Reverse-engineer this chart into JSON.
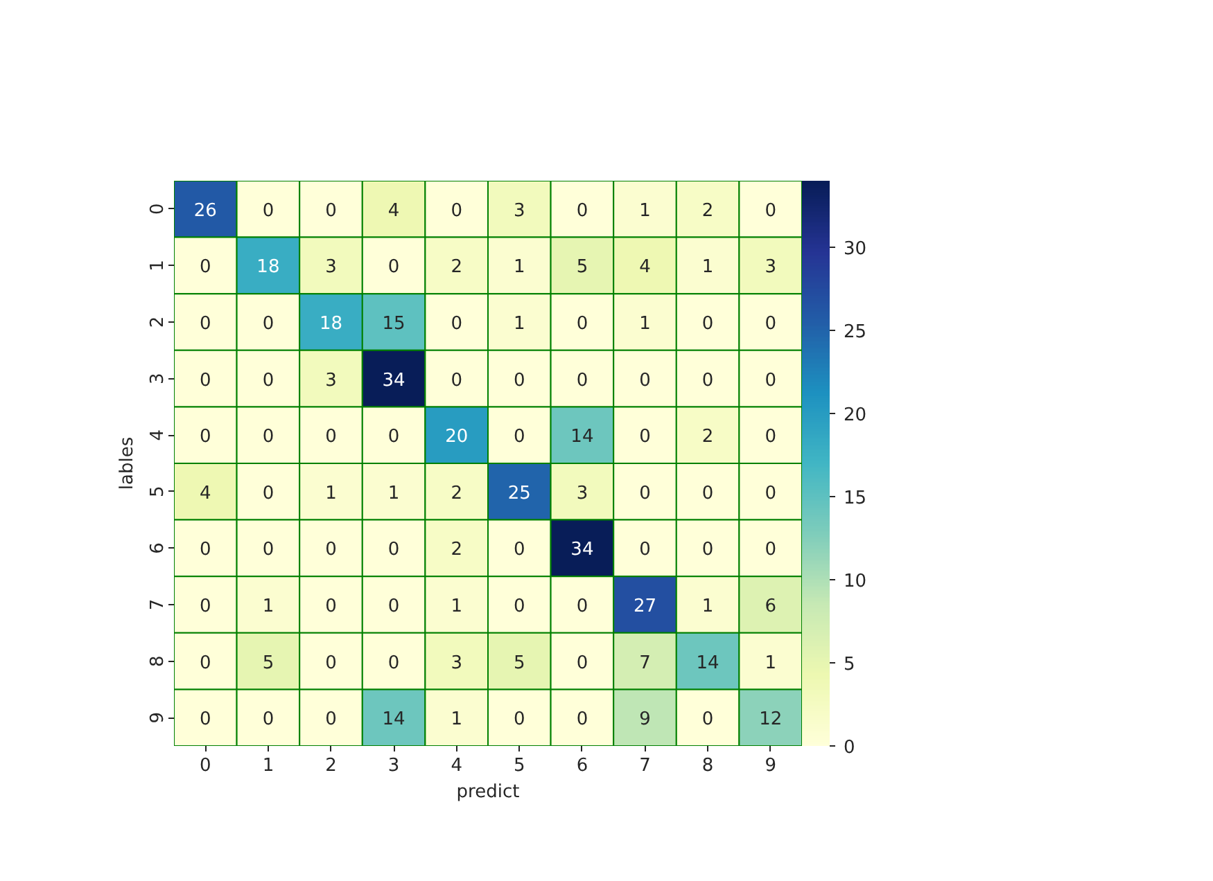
{
  "chart_data": {
    "type": "heatmap",
    "categories": [
      "0",
      "1",
      "2",
      "3",
      "4",
      "5",
      "6",
      "7",
      "8",
      "9"
    ],
    "y_categories": [
      "0",
      "1",
      "2",
      "3",
      "4",
      "5",
      "6",
      "7",
      "8",
      "9"
    ],
    "cells": [
      [
        26,
        0,
        0,
        4,
        0,
        3,
        0,
        1,
        2,
        0
      ],
      [
        0,
        18,
        3,
        0,
        2,
        1,
        5,
        4,
        1,
        3
      ],
      [
        0,
        0,
        18,
        15,
        0,
        1,
        0,
        1,
        0,
        0
      ],
      [
        0,
        0,
        3,
        34,
        0,
        0,
        0,
        0,
        0,
        0
      ],
      [
        0,
        0,
        0,
        0,
        20,
        0,
        14,
        0,
        2,
        0
      ],
      [
        4,
        0,
        1,
        1,
        2,
        25,
        3,
        0,
        0,
        0
      ],
      [
        0,
        0,
        0,
        0,
        2,
        0,
        34,
        0,
        0,
        0
      ],
      [
        0,
        1,
        0,
        0,
        1,
        0,
        0,
        27,
        1,
        6
      ],
      [
        0,
        5,
        0,
        0,
        3,
        5,
        0,
        7,
        14,
        1
      ],
      [
        0,
        0,
        0,
        14,
        1,
        0,
        0,
        9,
        0,
        12
      ]
    ],
    "clim": [
      0,
      34
    ],
    "cticks": [
      0,
      5,
      10,
      15,
      20,
      25,
      30
    ],
    "xlabel": "predict",
    "ylabel": "lables",
    "data_labels": true
  }
}
